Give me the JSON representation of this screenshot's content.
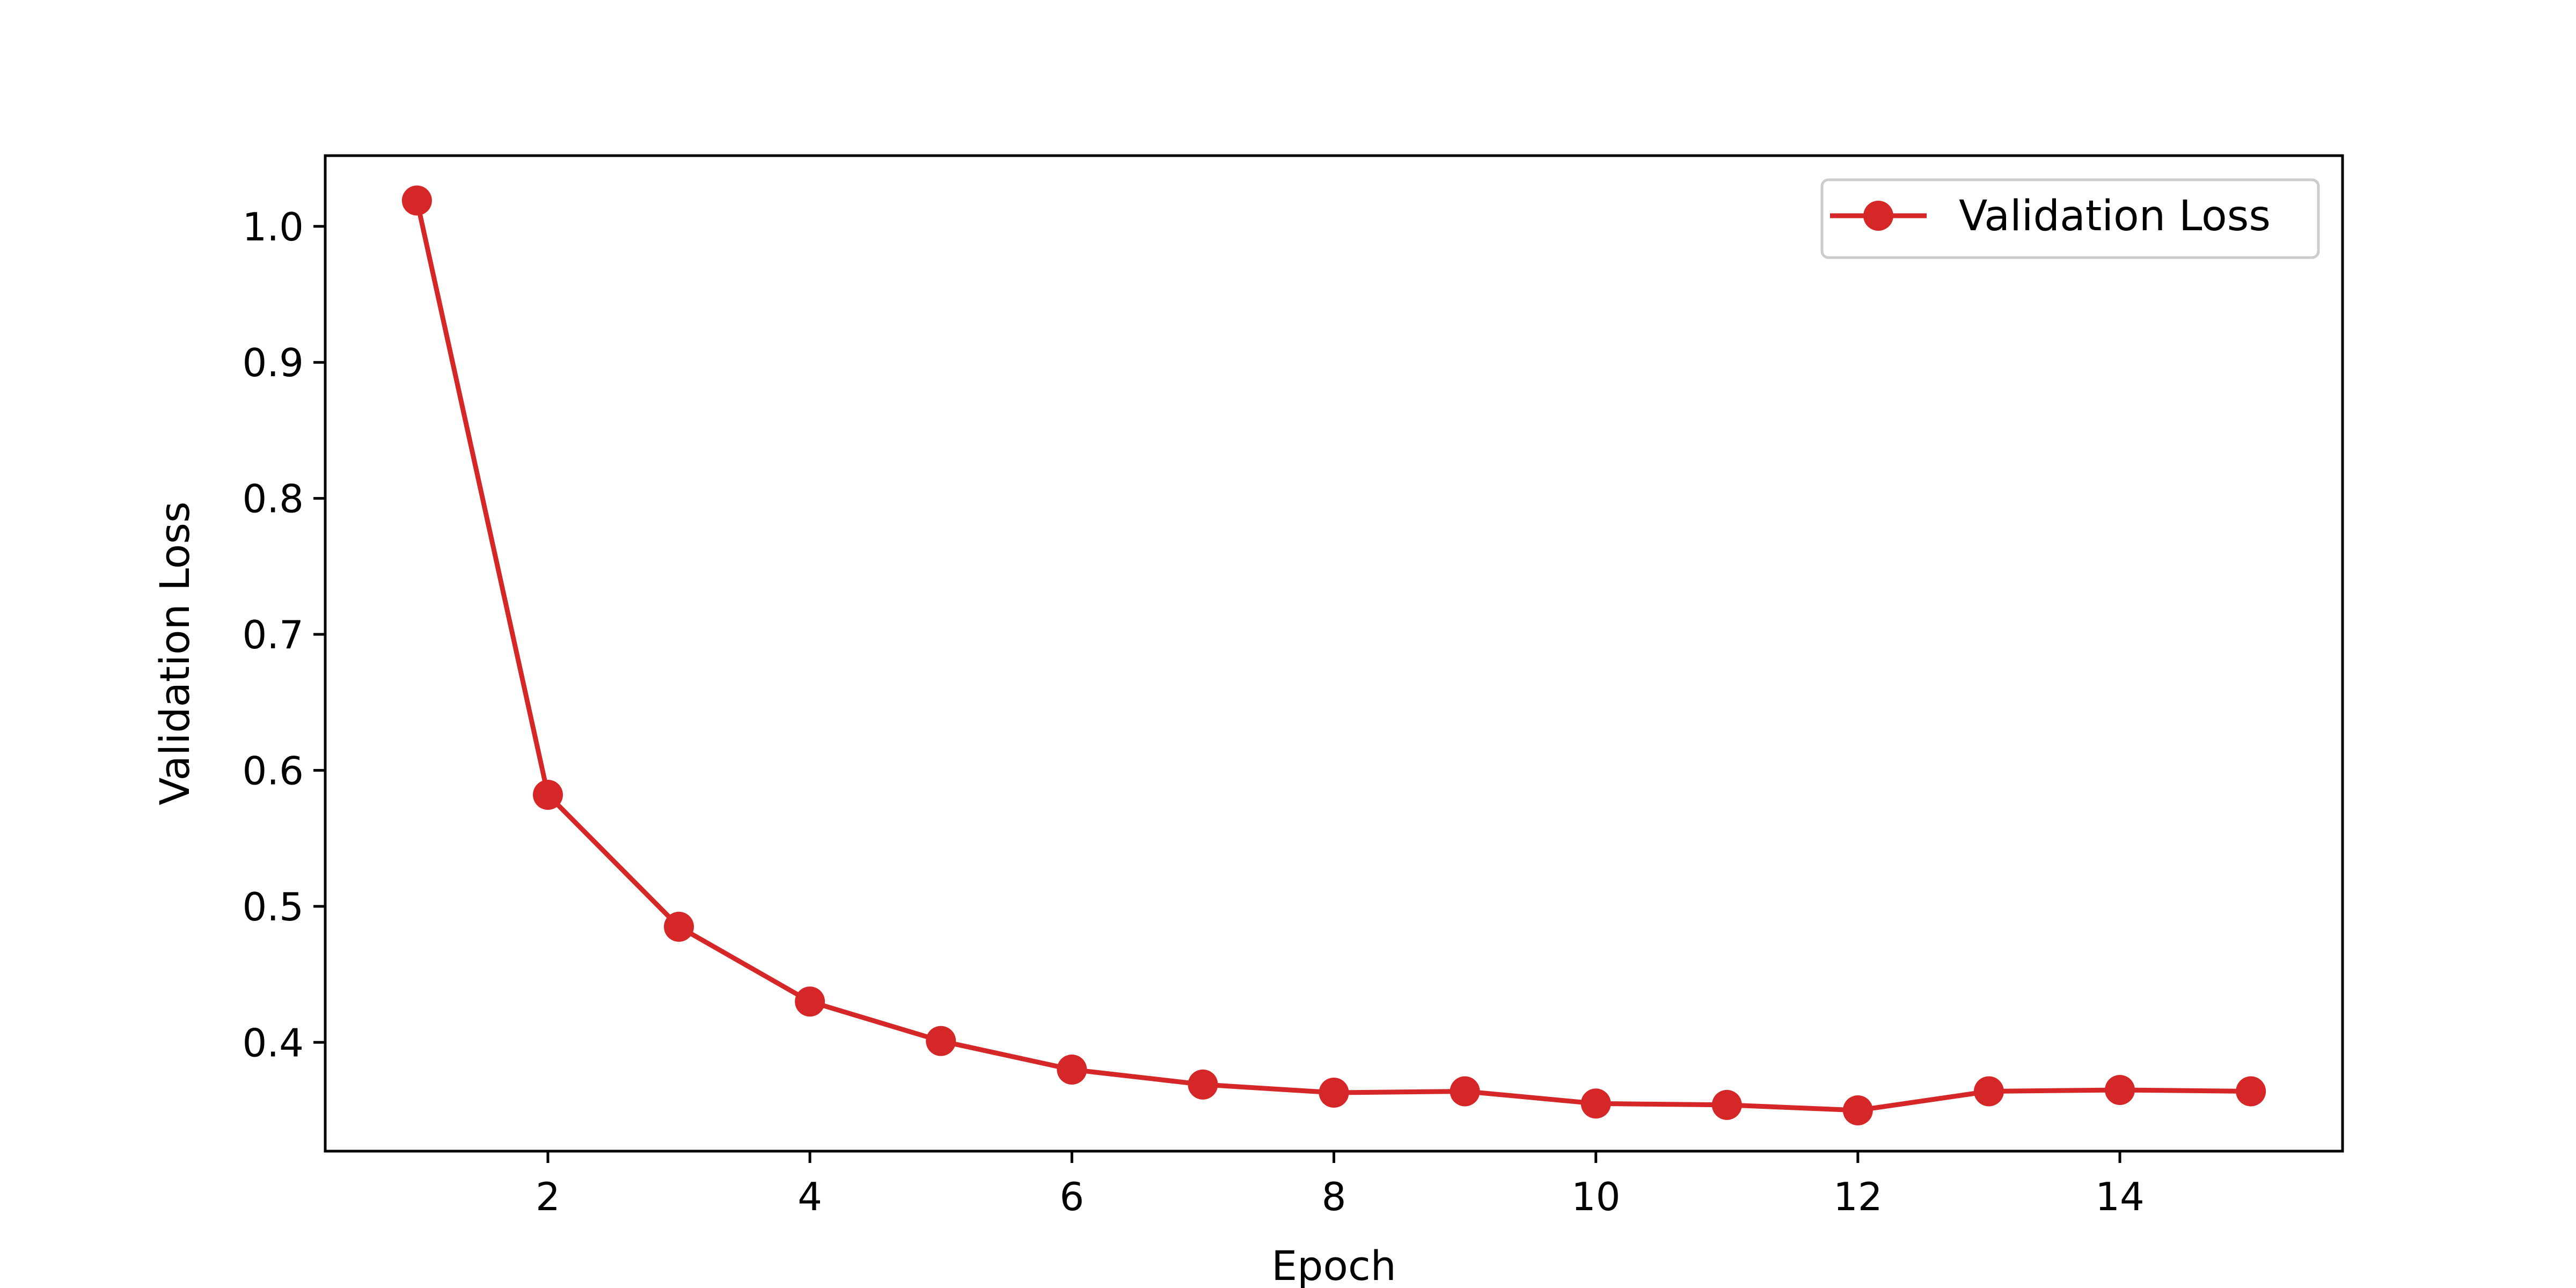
{
  "chart_data": {
    "type": "line",
    "title": "",
    "xlabel": "Epoch",
    "ylabel": "Validation Loss",
    "xlim": [
      0.3,
      15.7
    ],
    "ylim": [
      0.32,
      1.052
    ],
    "xticks": [
      2,
      4,
      6,
      8,
      10,
      12,
      14
    ],
    "xtick_labels": [
      "2",
      "4",
      "6",
      "8",
      "10",
      "12",
      "14"
    ],
    "yticks": [
      0.4,
      0.5,
      0.6,
      0.7,
      0.8,
      0.9,
      1.0
    ],
    "ytick_labels": [
      "0.4",
      "0.5",
      "0.6",
      "0.7",
      "0.8",
      "0.9",
      "1.0"
    ],
    "grid": false,
    "legend_position": "top-right",
    "series": [
      {
        "name": "Validation Loss",
        "color": "#d62728",
        "marker": "circle",
        "x": [
          1,
          2,
          3,
          4,
          5,
          6,
          7,
          8,
          9,
          10,
          11,
          12,
          13,
          14,
          15
        ],
        "y": [
          1.019,
          0.582,
          0.485,
          0.43,
          0.401,
          0.38,
          0.369,
          0.363,
          0.364,
          0.355,
          0.354,
          0.35,
          0.364,
          0.365,
          0.364
        ]
      }
    ]
  }
}
